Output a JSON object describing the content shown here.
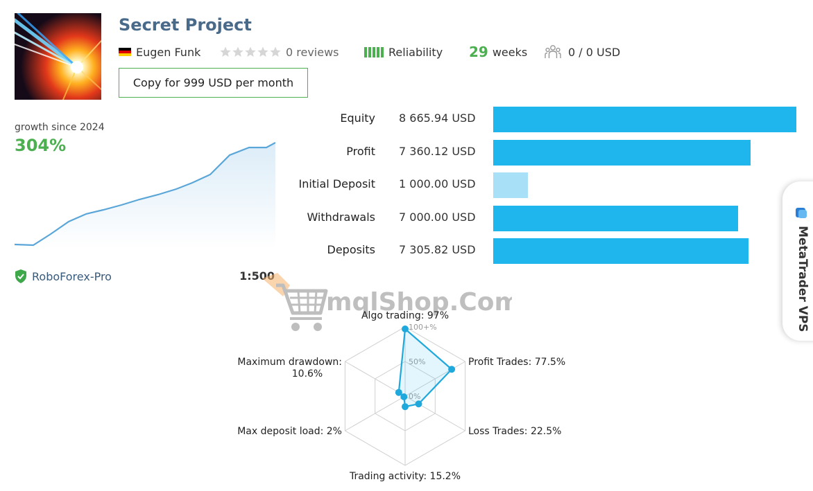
{
  "header": {
    "title": "Secret Project",
    "author": "Eugen Funk",
    "reviews": "0 reviews",
    "stars": 5,
    "reliability_label": "Reliability",
    "reliability_bars": 5,
    "weeks_value": "29",
    "weeks_label": "weeks",
    "subscribers": "0 / 0 USD",
    "copy_button": "Copy for 999 USD per month"
  },
  "growth": {
    "label": "growth since 2024",
    "value": "304%"
  },
  "broker": {
    "name": "RoboForex-Pro",
    "leverage": "1:500"
  },
  "stats": [
    {
      "label": "Equity",
      "value": "8 665.94 USD",
      "amount": 8665.94
    },
    {
      "label": "Profit",
      "value": "7 360.12 USD",
      "amount": 7360.12
    },
    {
      "label": "Initial Deposit",
      "value": "1 000.00 USD",
      "amount": 1000.0
    },
    {
      "label": "Withdrawals",
      "value": "7 000.00 USD",
      "amount": 7000.0
    },
    {
      "label": "Deposits",
      "value": "7 305.82 USD",
      "amount": 7305.82
    }
  ],
  "radar": {
    "ticks": [
      "100+%",
      "50%",
      "0%"
    ],
    "axes": [
      {
        "label": "Algo trading: 97%",
        "value": 97
      },
      {
        "label": "Profit Trades: 77.5%",
        "value": 77.5
      },
      {
        "label": "Loss Trades: 22.5%",
        "value": 22.5
      },
      {
        "label": "Trading activity: 15.2%",
        "value": 15.2
      },
      {
        "label": "Max deposit load: 2%",
        "value": 2
      },
      {
        "label": "Maximum drawdown:",
        "label2": "10.6%",
        "value": 10.6
      }
    ]
  },
  "side_tab": {
    "label": "MetaTrader VPS"
  },
  "watermark": {
    "text": "mqlShop.Com"
  },
  "colors": {
    "accent_green": "#4caf50",
    "bar_blue": "#1fb6ee",
    "bar_light_blue": "#a8e1f7",
    "title_blue": "#4a6a8a"
  }
}
